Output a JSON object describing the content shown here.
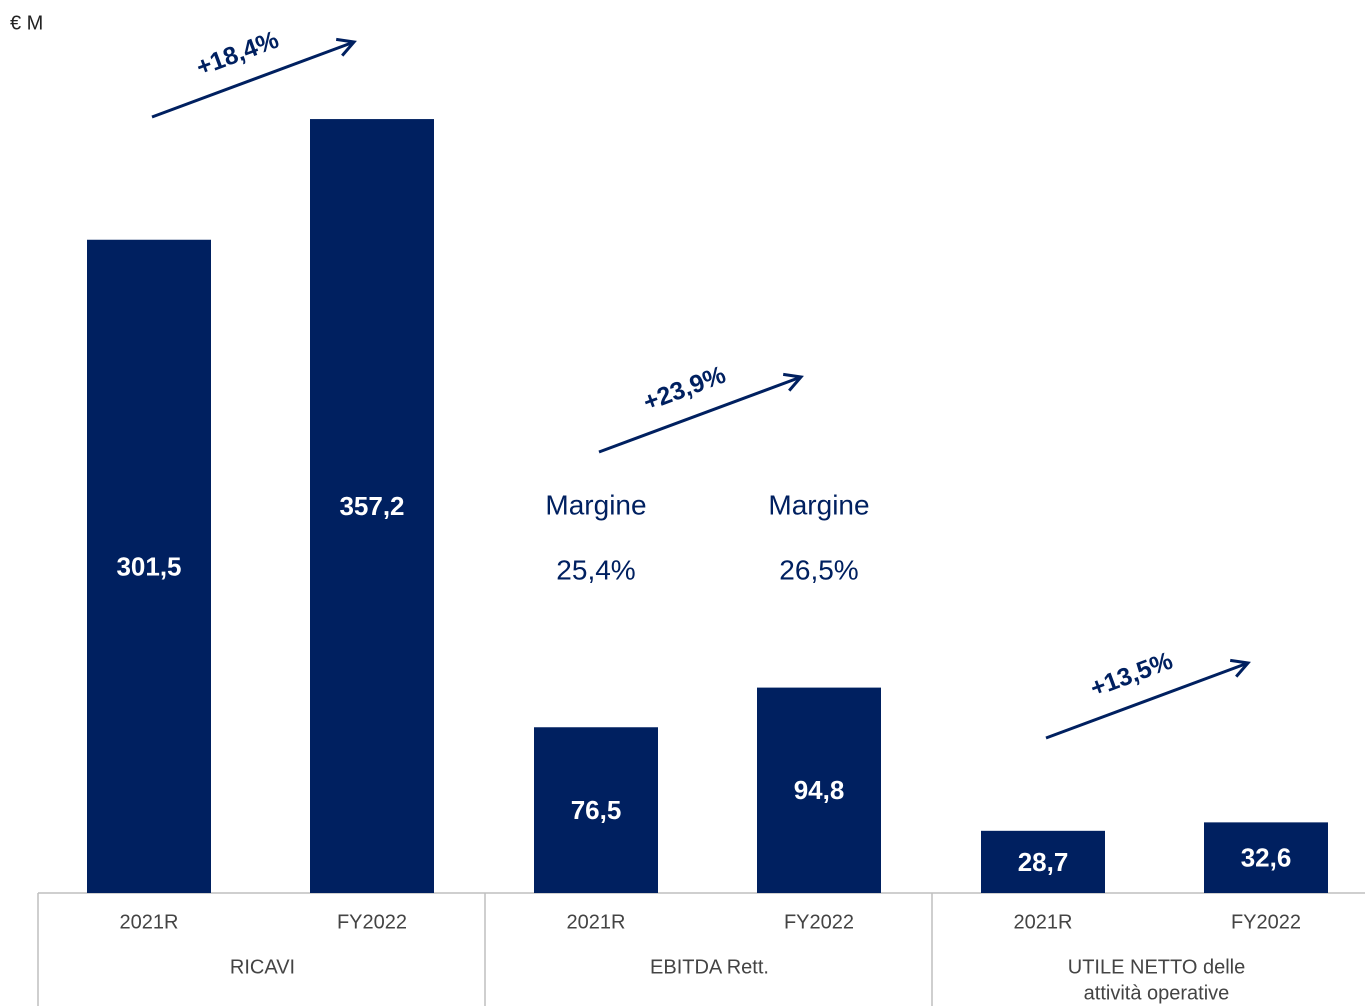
{
  "chart_data": {
    "type": "bar",
    "unit": "€ M",
    "color": "#002060",
    "ylim": [
      0,
      360
    ],
    "groups": [
      {
        "name_lines": [
          "RICAVI"
        ],
        "categories": [
          "2021R",
          "FY2022"
        ],
        "values": [
          301.5,
          357.2
        ],
        "value_labels": [
          "301,5",
          "357,2"
        ],
        "growth": "+18,4%"
      },
      {
        "name_lines": [
          "EBITDA Rett."
        ],
        "categories": [
          "2021R",
          "FY2022"
        ],
        "values": [
          76.5,
          94.8
        ],
        "value_labels": [
          "76,5",
          "94,8"
        ],
        "growth": "+23,9%",
        "margin_titles": [
          "Margine",
          "Margine"
        ],
        "margins": [
          "25,4%",
          "26,5%"
        ]
      },
      {
        "name_lines": [
          "UTILE NETTO delle",
          "attività operative"
        ],
        "categories": [
          "2021R",
          "FY2022"
        ],
        "values": [
          28.7,
          32.6
        ],
        "value_labels": [
          "28,7",
          "32,6"
        ],
        "growth": "+13,5%"
      }
    ]
  }
}
